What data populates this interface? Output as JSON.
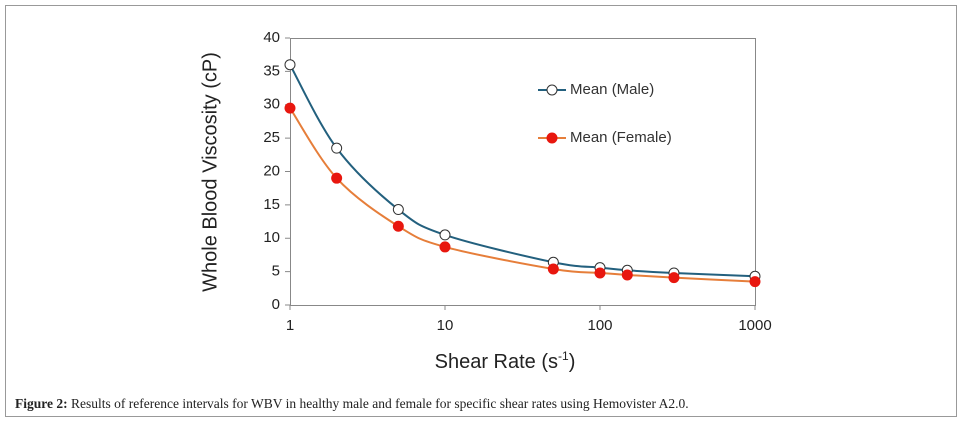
{
  "chart_data": {
    "type": "line",
    "x_label": {
      "text": "Shear Rate (s",
      "superscript": "-1",
      "suffix": ")"
    },
    "y_label": "Whole Blood Viscosity (cP)",
    "x": [
      1,
      2,
      5,
      10,
      50,
      100,
      150,
      300,
      1000
    ],
    "series": [
      {
        "name": "Mean (Male)",
        "color": "#23607e",
        "marker_fill": "#ffffff",
        "values": [
          36,
          23.5,
          14.3,
          10.5,
          6.4,
          5.6,
          5.2,
          4.8,
          4.3
        ]
      },
      {
        "name": "Mean (Female)",
        "color": "#e67e3a",
        "marker_fill": "#e8170f",
        "values": [
          29.5,
          19,
          11.8,
          8.7,
          5.4,
          4.8,
          4.5,
          4.1,
          3.5
        ]
      }
    ],
    "xscale": "log",
    "xlim": [
      1,
      1000
    ],
    "xticks": [
      1,
      10,
      100,
      1000
    ],
    "ylim": [
      0,
      40
    ],
    "yticks": [
      0,
      5,
      10,
      15,
      20,
      25,
      30,
      35,
      40
    ],
    "grid": false
  },
  "caption": {
    "label": "Figure 2:",
    "text": " Results of reference intervals for WBV in healthy male and female for specific shear rates using Hemovister A2.0."
  }
}
